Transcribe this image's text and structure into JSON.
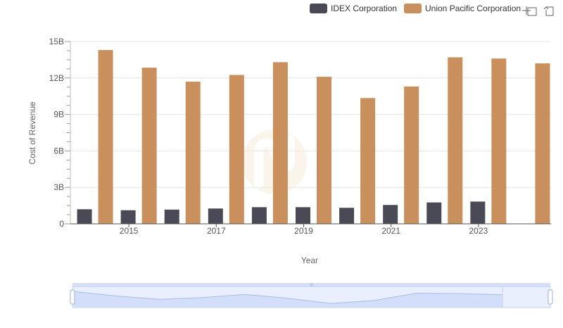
{
  "chart_data": {
    "type": "bar",
    "x": [
      "2014",
      "2015",
      "2016",
      "2017",
      "2018",
      "2019",
      "2020",
      "2021",
      "2022",
      "2023",
      "2024"
    ],
    "x_tick_labels": [
      "2015",
      "2017",
      "2019",
      "2021",
      "2023"
    ],
    "series": [
      {
        "name": "IDEX Corporation",
        "color": "#4a4a56",
        "values": [
          1.2,
          1.12,
          1.17,
          1.26,
          1.37,
          1.37,
          1.32,
          1.55,
          1.76,
          1.83,
          null
        ]
      },
      {
        "name": "Union Pacific Corporation",
        "color": "#c98f5c",
        "values": [
          14.3,
          12.85,
          11.7,
          12.25,
          13.3,
          12.1,
          10.35,
          11.3,
          13.7,
          13.6,
          13.2
        ]
      }
    ],
    "ylabel": "Cost of Revenue",
    "xlabel": "Year",
    "y_ticks": [
      0,
      3,
      6,
      9,
      12,
      15
    ],
    "y_tick_labels": [
      "0",
      "3B",
      "6B",
      "9B",
      "12B",
      "15B"
    ],
    "ylim": [
      0,
      15
    ],
    "grid": true,
    "legend_position": "top-right",
    "toolbar": {
      "zoom_icon": "zoom-select-icon",
      "reset_icon": "reset-zoom-icon"
    },
    "data_zoom": {
      "start_fraction": 0,
      "end_fraction": 1,
      "handle_grip": "III"
    }
  }
}
